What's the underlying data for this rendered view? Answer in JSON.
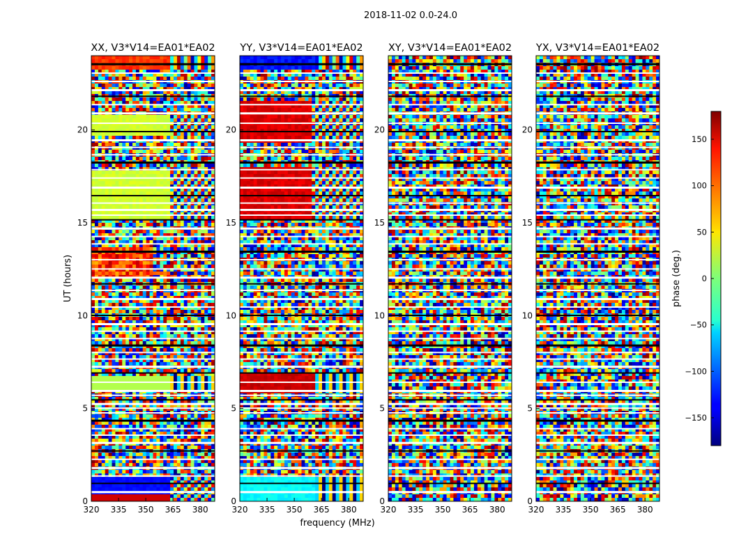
{
  "chart_data": {
    "type": "heatmap",
    "figure_title": "2018-11-02 0.0-24.0",
    "xlabel": "frequency (MHz)",
    "ylabel": "UT (hours)",
    "xlim": [
      320,
      388
    ],
    "ylim": [
      0,
      24
    ],
    "xticks": [
      320,
      335,
      350,
      365,
      380
    ],
    "yticks": [
      0,
      5,
      10,
      15,
      20
    ],
    "panels": [
      {
        "title": "XX, V3*V14=EA01*EA02",
        "pattern": "xx"
      },
      {
        "title": "YY, V3*V14=EA01*EA02",
        "pattern": "yy"
      },
      {
        "title": "XY, V3*V14=EA01*EA02",
        "pattern": "cross"
      },
      {
        "title": "YX, V3*V14=EA01*EA02",
        "pattern": "cross"
      }
    ],
    "colorbar": {
      "label": "phase (deg.)",
      "range": [
        -180,
        180
      ],
      "ticks": [
        150,
        100,
        50,
        0,
        -50,
        -100,
        -150
      ],
      "tick_labels": [
        "150",
        "100",
        "50",
        "0",
        "−50",
        "−100",
        "−150"
      ],
      "colormap": "jet"
    },
    "flagged_rows_hours": [
      0.55,
      1.0,
      1.4,
      1.85,
      2.3,
      2.75,
      3.2,
      3.6,
      3.95,
      4.4,
      4.8,
      5.05,
      5.3,
      5.5,
      5.75,
      6.0,
      6.45,
      6.95,
      7.3,
      7.7,
      8.05,
      8.45,
      8.8,
      9.2,
      9.6,
      10.05,
      10.5,
      10.95,
      11.4,
      11.75,
      12.1,
      12.55,
      13.05,
      13.5,
      13.9,
      14.3,
      14.75,
      15.2,
      15.45,
      15.75,
      16.1,
      16.5,
      16.95,
      17.45,
      17.9,
      18.3,
      18.7,
      19.1,
      19.5,
      19.95,
      20.4,
      20.95,
      21.4,
      21.85,
      22.2,
      22.65,
      23.1,
      23.6
    ]
  }
}
